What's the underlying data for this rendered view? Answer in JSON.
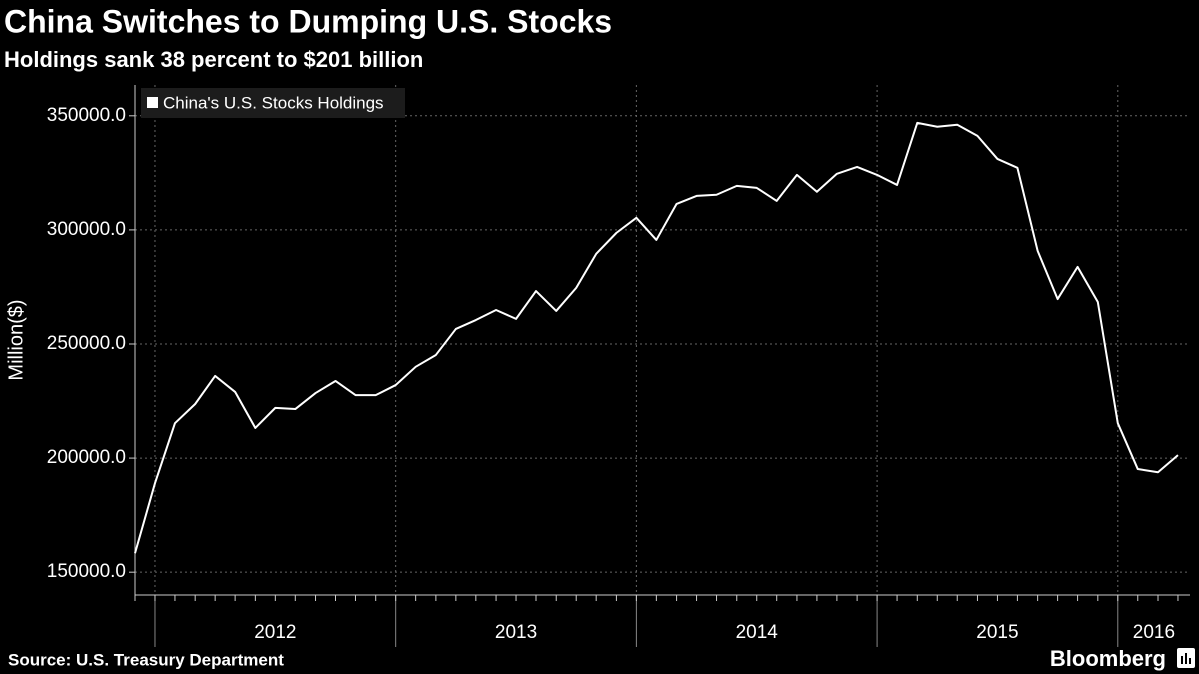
{
  "chart_data": {
    "type": "line",
    "title": "China Switches to Dumping U.S. Stocks",
    "subtitle": "Holdings sank 38 percent to $201 billion",
    "y_label": "Million($)",
    "source": "Source: U.S. Treasury Department",
    "logo": "Bloomberg",
    "x": [
      2011.917,
      2012,
      2012.083,
      2012.167,
      2012.25,
      2012.333,
      2012.417,
      2012.5,
      2012.583,
      2012.667,
      2012.75,
      2012.833,
      2012.917,
      2013,
      2013.083,
      2013.167,
      2013.25,
      2013.333,
      2013.417,
      2013.5,
      2013.583,
      2013.667,
      2013.75,
      2013.833,
      2013.917,
      2014,
      2014.083,
      2014.167,
      2014.25,
      2014.333,
      2014.417,
      2014.5,
      2014.583,
      2014.667,
      2014.75,
      2014.833,
      2014.917,
      2015,
      2015.083,
      2015.167,
      2015.25,
      2015.333,
      2015.417,
      2015.5,
      2015.583,
      2015.667,
      2015.75,
      2015.833,
      2015.917,
      2016,
      2016.083,
      2016.167,
      2016.25
    ],
    "series": [
      {
        "name": "China's U.S. Stocks Holdings",
        "color": "#ffffff",
        "values": [
          158300,
          189000,
          215300,
          223700,
          236000,
          229000,
          213200,
          222000,
          221500,
          228500,
          233800,
          227600,
          227600,
          232000,
          240000,
          245200,
          256600,
          260500,
          264900,
          261000,
          273200,
          264500,
          274600,
          289500,
          298700,
          305300,
          295600,
          311400,
          314900,
          315400,
          319300,
          318400,
          312700,
          324100,
          316700,
          324600,
          327600,
          324100,
          319700,
          346900,
          345200,
          346100,
          341200,
          331100,
          327200,
          290800,
          269700,
          283800,
          268400,
          215300,
          195200,
          193800,
          201300
        ]
      }
    ],
    "xlim": [
      2011.917,
      2016.3
    ],
    "xticks": [
      2012,
      2013,
      2014,
      2015,
      2016
    ],
    "ylim": [
      140000,
      363500
    ],
    "yticks": [
      {
        "value": 150000,
        "label": "150000.0"
      },
      {
        "value": 200000,
        "label": "200000.0"
      },
      {
        "value": 250000,
        "label": "250000.0"
      },
      {
        "value": 300000,
        "label": "300000.0"
      },
      {
        "value": 350000,
        "label": "350000.0"
      }
    ],
    "grid": true,
    "legend": "top-left"
  }
}
